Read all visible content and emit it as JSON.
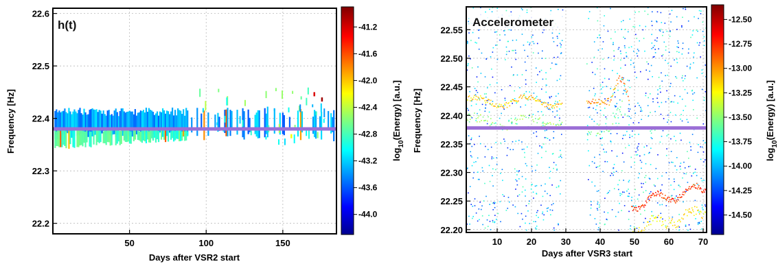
{
  "chart_data": [
    {
      "type": "heatmap",
      "panel_label": "h(t)",
      "xlabel": "Days after VSR2 start",
      "ylabel": "Frequency [Hz]",
      "xlim": [
        0,
        185
      ],
      "ylim": [
        22.18,
        22.61
      ],
      "x_ticks": [
        50,
        100,
        150
      ],
      "y_ticks": [
        22.2,
        22.3,
        22.4,
        22.5,
        22.6
      ],
      "grid": true,
      "reference_line": {
        "y": 22.38,
        "color": "#9b6fd6"
      },
      "colorbar": {
        "label": "log10(Energy) [a.u.]",
        "range": [
          -44.3,
          -40.9
        ],
        "ticks": [
          "-41.2",
          "-41.6",
          "-42.0",
          "-42.4",
          "-42.8",
          "-43.2",
          "-43.6",
          "-44.0"
        ]
      }
    },
    {
      "type": "heatmap",
      "panel_label": "Accelerometer",
      "xlabel": "Days after VSR3 start",
      "ylabel": "Frequency [Hz]",
      "xlim": [
        1,
        71
      ],
      "ylim": [
        22.195,
        22.59
      ],
      "x_ticks": [
        10,
        20,
        30,
        40,
        50,
        60,
        70
      ],
      "y_ticks": [
        22.2,
        22.25,
        22.3,
        22.35,
        22.4,
        22.45,
        22.5,
        22.55
      ],
      "y_tick_labels": [
        "22.20",
        "22.25",
        "22.30",
        "22.35",
        "22.40",
        "22.45",
        "22.50",
        "22.55"
      ],
      "grid": true,
      "reference_line": {
        "y": 22.378,
        "color": "#9b6fd6"
      },
      "colorbar": {
        "label": "log10(Energy) [a.u.]",
        "range": [
          -14.7,
          -12.35
        ],
        "ticks": [
          "-12.50",
          "-12.75",
          "-13.00",
          "-13.25",
          "-13.50",
          "-13.75",
          "-14.00",
          "-14.25",
          "-14.50"
        ]
      }
    }
  ]
}
